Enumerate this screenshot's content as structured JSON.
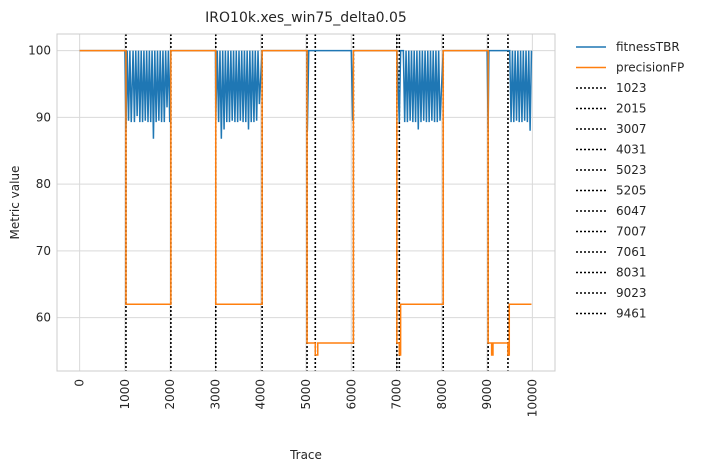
{
  "chart_data": {
    "type": "line",
    "title": "IRO10k.xes_win75_delta0.05",
    "xlabel": "Trace",
    "ylabel": "Metric value",
    "xlim": [
      -500,
      10500
    ],
    "ylim": [
      52,
      102.5
    ],
    "x_ticks": [
      0,
      1000,
      2000,
      3000,
      4000,
      5000,
      6000,
      7000,
      8000,
      9000,
      10000
    ],
    "y_ticks": [
      60,
      70,
      80,
      90,
      100
    ],
    "grid": true,
    "legend_position": "outside-right",
    "series": [
      {
        "name": "fitnessTBR",
        "color": "#1f77b4",
        "points": [
          [
            0,
            100
          ],
          [
            1000,
            100
          ],
          [
            1023,
            88.2
          ],
          [
            1050,
            100
          ],
          [
            1080,
            89.5
          ],
          [
            1110,
            100
          ],
          [
            1140,
            89.3
          ],
          [
            1180,
            100
          ],
          [
            1210,
            89.3
          ],
          [
            1240,
            100
          ],
          [
            1270,
            90.2
          ],
          [
            1300,
            100
          ],
          [
            1330,
            89.3
          ],
          [
            1360,
            100
          ],
          [
            1390,
            89.3
          ],
          [
            1420,
            100
          ],
          [
            1450,
            89.5
          ],
          [
            1480,
            100
          ],
          [
            1510,
            89.3
          ],
          [
            1540,
            100
          ],
          [
            1570,
            89.3
          ],
          [
            1600,
            100
          ],
          [
            1630,
            86.8
          ],
          [
            1660,
            100
          ],
          [
            1690,
            89.3
          ],
          [
            1720,
            100
          ],
          [
            1750,
            89.5
          ],
          [
            1780,
            100
          ],
          [
            1810,
            89.3
          ],
          [
            1840,
            100
          ],
          [
            1870,
            89.3
          ],
          [
            1900,
            100
          ],
          [
            1930,
            91.5
          ],
          [
            1960,
            100
          ],
          [
            1990,
            89.3
          ],
          [
            2015,
            100
          ],
          [
            3000,
            100
          ],
          [
            3007,
            89.5
          ],
          [
            3040,
            100
          ],
          [
            3070,
            89.3
          ],
          [
            3100,
            100
          ],
          [
            3130,
            86.8
          ],
          [
            3160,
            100
          ],
          [
            3190,
            88.2
          ],
          [
            3220,
            100
          ],
          [
            3250,
            89.3
          ],
          [
            3280,
            100
          ],
          [
            3310,
            89.3
          ],
          [
            3340,
            100
          ],
          [
            3370,
            89.5
          ],
          [
            3400,
            100
          ],
          [
            3430,
            89.3
          ],
          [
            3460,
            100
          ],
          [
            3490,
            89.3
          ],
          [
            3520,
            100
          ],
          [
            3550,
            89.5
          ],
          [
            3580,
            100
          ],
          [
            3610,
            89.3
          ],
          [
            3640,
            100
          ],
          [
            3670,
            89.3
          ],
          [
            3700,
            100
          ],
          [
            3730,
            88.2
          ],
          [
            3760,
            100
          ],
          [
            3790,
            89.3
          ],
          [
            3820,
            100
          ],
          [
            3850,
            89.3
          ],
          [
            3880,
            100
          ],
          [
            3910,
            89.5
          ],
          [
            3940,
            100
          ],
          [
            3970,
            92.0
          ],
          [
            4031,
            100
          ],
          [
            5023,
            100
          ],
          [
            5030,
            88.0
          ],
          [
            5060,
            100
          ],
          [
            5205,
            100
          ],
          [
            6000,
            100
          ],
          [
            6030,
            89.5
          ],
          [
            6047,
            100
          ],
          [
            7007,
            100
          ],
          [
            7061,
            89.3
          ],
          [
            7090,
            100
          ],
          [
            7150,
            100
          ],
          [
            7180,
            89.3
          ],
          [
            7210,
            100
          ],
          [
            7240,
            89.3
          ],
          [
            7270,
            100
          ],
          [
            7300,
            89.5
          ],
          [
            7330,
            100
          ],
          [
            7360,
            89.3
          ],
          [
            7390,
            100
          ],
          [
            7420,
            89.3
          ],
          [
            7450,
            100
          ],
          [
            7480,
            88.2
          ],
          [
            7510,
            100
          ],
          [
            7540,
            89.3
          ],
          [
            7570,
            100
          ],
          [
            7600,
            89.5
          ],
          [
            7630,
            100
          ],
          [
            7660,
            89.3
          ],
          [
            7690,
            100
          ],
          [
            7720,
            89.3
          ],
          [
            7750,
            100
          ],
          [
            7780,
            89.5
          ],
          [
            7810,
            100
          ],
          [
            7840,
            89.3
          ],
          [
            7870,
            100
          ],
          [
            7900,
            89.3
          ],
          [
            7930,
            100
          ],
          [
            7960,
            89.5
          ],
          [
            8031,
            100
          ],
          [
            9000,
            100
          ],
          [
            9023,
            88.2
          ],
          [
            9040,
            100
          ],
          [
            9461,
            100
          ],
          [
            9500,
            100
          ],
          [
            9530,
            89.3
          ],
          [
            9560,
            100
          ],
          [
            9590,
            89.3
          ],
          [
            9620,
            100
          ],
          [
            9650,
            89.5
          ],
          [
            9680,
            100
          ],
          [
            9710,
            89.3
          ],
          [
            9740,
            100
          ],
          [
            9770,
            89.3
          ],
          [
            9800,
            100
          ],
          [
            9830,
            89.5
          ],
          [
            9860,
            100
          ],
          [
            9890,
            89.3
          ],
          [
            9920,
            100
          ],
          [
            9950,
            88.0
          ],
          [
            9980,
            100
          ]
        ]
      },
      {
        "name": "precisionFP",
        "color": "#ff7f0e",
        "points": [
          [
            0,
            100
          ],
          [
            1023,
            100
          ],
          [
            1023,
            62.0
          ],
          [
            2015,
            62.0
          ],
          [
            2015,
            100
          ],
          [
            3007,
            100
          ],
          [
            3007,
            62.0
          ],
          [
            4031,
            62.0
          ],
          [
            4031,
            100
          ],
          [
            5023,
            100
          ],
          [
            5023,
            56.2
          ],
          [
            5205,
            56.2
          ],
          [
            5205,
            54.4
          ],
          [
            5260,
            54.4
          ],
          [
            5260,
            56.2
          ],
          [
            6047,
            56.2
          ],
          [
            6047,
            100
          ],
          [
            7007,
            100
          ],
          [
            7007,
            56.2
          ],
          [
            7061,
            56.2
          ],
          [
            7061,
            54.4
          ],
          [
            7090,
            54.4
          ],
          [
            7090,
            62.0
          ],
          [
            8031,
            62.0
          ],
          [
            8031,
            100
          ],
          [
            9023,
            100
          ],
          [
            9023,
            56.2
          ],
          [
            9100,
            56.2
          ],
          [
            9100,
            54.4
          ],
          [
            9130,
            54.4
          ],
          [
            9130,
            56.2
          ],
          [
            9461,
            56.2
          ],
          [
            9461,
            54.4
          ],
          [
            9490,
            54.4
          ],
          [
            9490,
            62.0
          ],
          [
            9980,
            62.0
          ]
        ]
      }
    ],
    "vlines": {
      "color": "#000000",
      "labels": [
        "1023",
        "2015",
        "3007",
        "4031",
        "5023",
        "5205",
        "6047",
        "7007",
        "7061",
        "8031",
        "9023",
        "9461"
      ],
      "x": [
        1023,
        2015,
        3007,
        4031,
        5023,
        5205,
        6047,
        7007,
        7061,
        8031,
        9023,
        9461
      ]
    }
  }
}
